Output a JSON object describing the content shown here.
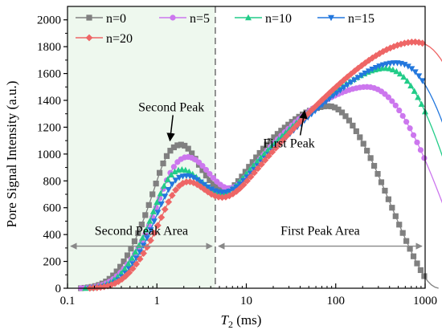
{
  "chart_data": {
    "type": "line",
    "xlabel_symbol": "T",
    "xlabel_sub": "2",
    "xlabel_unit": " (ms)",
    "ylabel": "Pore Signal Intensity (a.u.)",
    "xscale": "log",
    "xlim": [
      0.1,
      1000
    ],
    "ylim": [
      0,
      2100
    ],
    "x_ticks": [
      0.1,
      1,
      10,
      100,
      1000
    ],
    "x_tick_labels": [
      "0.1",
      "1",
      "10",
      "100",
      "1000"
    ],
    "y_ticks": [
      0,
      200,
      400,
      600,
      800,
      1000,
      1200,
      1400,
      1600,
      1800,
      2000
    ],
    "y_tick_labels": [
      "0",
      "200",
      "400",
      "600",
      "800",
      "1000",
      "1200",
      "1400",
      "1600",
      "1800",
      "2000"
    ],
    "grid": false,
    "legend_position": "top-left",
    "divider_x": 4.5,
    "shaded_region": [
      0.1,
      4.5
    ],
    "shaded_color": "#eef8ee",
    "series": [
      {
        "name": "n=0",
        "color": "#808080",
        "marker": "square",
        "log_start": -0.85,
        "log_step": 0.04,
        "values": [
          0,
          3,
          6,
          10,
          16,
          24,
          35,
          50,
          70,
          95,
          125,
          160,
          200,
          245,
          295,
          350,
          410,
          475,
          545,
          620,
          700,
          780,
          860,
          930,
          985,
          1025,
          1050,
          1065,
          1070,
          1062,
          1040,
          1005,
          965,
          920,
          880,
          840,
          805,
          775,
          752,
          737,
          730,
          732,
          745,
          768,
          798,
          832,
          868,
          905,
          940,
          975,
          1008,
          1040,
          1070,
          1098,
          1125,
          1150,
          1174,
          1197,
          1219,
          1240,
          1260,
          1278,
          1295,
          1310,
          1323,
          1334,
          1343,
          1350,
          1355,
          1357,
          1355,
          1347,
          1332,
          1310,
          1282,
          1250,
          1212,
          1170,
          1125,
          1077,
          1025,
          970,
          912,
          852,
          790,
          727,
          663,
          600,
          537,
          474,
          412,
          352,
          294,
          238,
          185,
          135,
          90,
          52,
          25,
          8,
          0
        ]
      },
      {
        "name": "n=5",
        "color": "#cc77ee",
        "marker": "circle",
        "log_start": -0.85,
        "log_step": 0.04,
        "values": [
          0,
          2,
          4,
          7,
          11,
          17,
          25,
          36,
          50,
          68,
          90,
          115,
          145,
          178,
          215,
          255,
          300,
          350,
          405,
          465,
          530,
          600,
          670,
          740,
          805,
          860,
          905,
          940,
          962,
          975,
          978,
          972,
          958,
          938,
          912,
          883,
          852,
          822,
          795,
          772,
          755,
          746,
          747,
          757,
          776,
          801,
          830,
          862,
          895,
          928,
          960,
          992,
          1023,
          1053,
          1082,
          1110,
          1137,
          1163,
          1188,
          1213,
          1237,
          1260,
          1282,
          1303,
          1323,
          1342,
          1360,
          1377,
          1393,
          1408,
          1422,
          1435,
          1447,
          1458,
          1468,
          1477,
          1485,
          1491,
          1496,
          1499,
          1500,
          1498,
          1492,
          1482,
          1467,
          1447,
          1423,
          1394,
          1362,
          1325,
          1284,
          1240,
          1192,
          1141,
          1087,
          1030,
          970,
          908,
          844,
          778,
          710,
          641,
          571,
          501,
          431,
          362,
          295,
          230,
          170,
          115,
          68,
          33,
          10,
          0
        ]
      },
      {
        "name": "n=10",
        "color": "#22cc88",
        "marker": "triangle-up",
        "log_start": -0.8,
        "log_step": 0.04,
        "values": [
          0,
          2,
          4,
          8,
          13,
          20,
          30,
          44,
          62,
          85,
          112,
          145,
          182,
          224,
          270,
          320,
          375,
          435,
          500,
          570,
          640,
          705,
          762,
          810,
          845,
          868,
          880,
          884,
          880,
          868,
          850,
          828,
          803,
          778,
          755,
          735,
          720,
          710,
          707,
          711,
          722,
          740,
          763,
          790,
          820,
          851,
          882,
          913,
          943,
          972,
          1000,
          1028,
          1055,
          1082,
          1108,
          1134,
          1159,
          1184,
          1208,
          1232,
          1256,
          1279,
          1302,
          1324,
          1346,
          1368,
          1389,
          1410,
          1430,
          1450,
          1469,
          1488,
          1506,
          1523,
          1540,
          1556,
          1571,
          1585,
          1598,
          1610,
          1620,
          1628,
          1634,
          1638,
          1639,
          1636,
          1628,
          1615,
          1597,
          1573,
          1543,
          1508,
          1468,
          1422,
          1371,
          1315,
          1254,
          1189,
          1120,
          1047,
          971,
          892,
          811,
          729,
          646,
          563,
          481,
          401,
          324,
          250,
          182,
          120,
          68,
          28,
          5,
          0
        ]
      },
      {
        "name": "n=15",
        "color": "#2277dd",
        "marker": "triangle-down",
        "log_start": -0.75,
        "log_step": 0.04,
        "values": [
          0,
          2,
          4,
          8,
          13,
          20,
          30,
          44,
          62,
          85,
          112,
          145,
          182,
          224,
          270,
          320,
          375,
          435,
          500,
          565,
          628,
          685,
          735,
          775,
          805,
          825,
          835,
          838,
          834,
          824,
          809,
          791,
          772,
          754,
          738,
          726,
          718,
          714,
          716,
          723,
          736,
          754,
          776,
          801,
          828,
          856,
          884,
          912,
          940,
          968,
          995,
          1022,
          1049,
          1075,
          1101,
          1127,
          1152,
          1177,
          1202,
          1226,
          1250,
          1274,
          1298,
          1321,
          1344,
          1367,
          1389,
          1411,
          1433,
          1454,
          1475,
          1495,
          1515,
          1534,
          1552,
          1570,
          1587,
          1603,
          1618,
          1632,
          1644,
          1655,
          1664,
          1671,
          1676,
          1679,
          1679,
          1675,
          1667,
          1654,
          1636,
          1612,
          1582,
          1546,
          1504,
          1456,
          1402,
          1342,
          1277,
          1207,
          1132,
          1053,
          970,
          884,
          796,
          706,
          616,
          527,
          440,
          356,
          276,
          202,
          135,
          78,
          34,
          7,
          0
        ]
      },
      {
        "name": "n=20",
        "color": "#ee6666",
        "marker": "diamond",
        "log_start": -0.75,
        "log_step": 0.04,
        "values": [
          0,
          2,
          4,
          7,
          11,
          17,
          25,
          36,
          50,
          68,
          90,
          116,
          146,
          180,
          218,
          260,
          306,
          356,
          410,
          468,
          528,
          588,
          643,
          692,
          732,
          762,
          782,
          792,
          793,
          786,
          773,
          756,
          737,
          718,
          701,
          688,
          680,
          677,
          680,
          689,
          703,
          722,
          745,
          771,
          800,
          830,
          861,
          892,
          923,
          954,
          985,
          1015,
          1045,
          1075,
          1104,
          1133,
          1162,
          1190,
          1218,
          1246,
          1273,
          1300,
          1327,
          1353,
          1379,
          1405,
          1430,
          1455,
          1480,
          1504,
          1528,
          1551,
          1574,
          1596,
          1618,
          1639,
          1659,
          1679,
          1698,
          1716,
          1733,
          1749,
          1764,
          1778,
          1790,
          1801,
          1811,
          1819,
          1826,
          1831,
          1834,
          1835,
          1832,
          1826,
          1815,
          1799,
          1777,
          1748,
          1713,
          1671,
          1622,
          1566,
          1503,
          1433,
          1356,
          1273,
          1184,
          1090,
          991,
          888,
          782,
          674,
          565,
          456,
          350,
          248,
          155,
          75,
          22,
          0
        ]
      }
    ],
    "annotations": [
      {
        "text": "Second Peak",
        "x": 1.4,
        "y": 1070,
        "text_x": 1.45,
        "text_y": 1320
      },
      {
        "text": "First Peak",
        "x": 45,
        "y": 1357,
        "text_x": 30,
        "text_y": 1050
      }
    ],
    "areas": [
      {
        "text": "Second Peak Area",
        "x_from": 0.1,
        "x_to": 4.5,
        "y": 200
      },
      {
        "text": "First Peak Area",
        "x_from": 4.5,
        "x_to": 1000,
        "y": 200
      }
    ]
  }
}
